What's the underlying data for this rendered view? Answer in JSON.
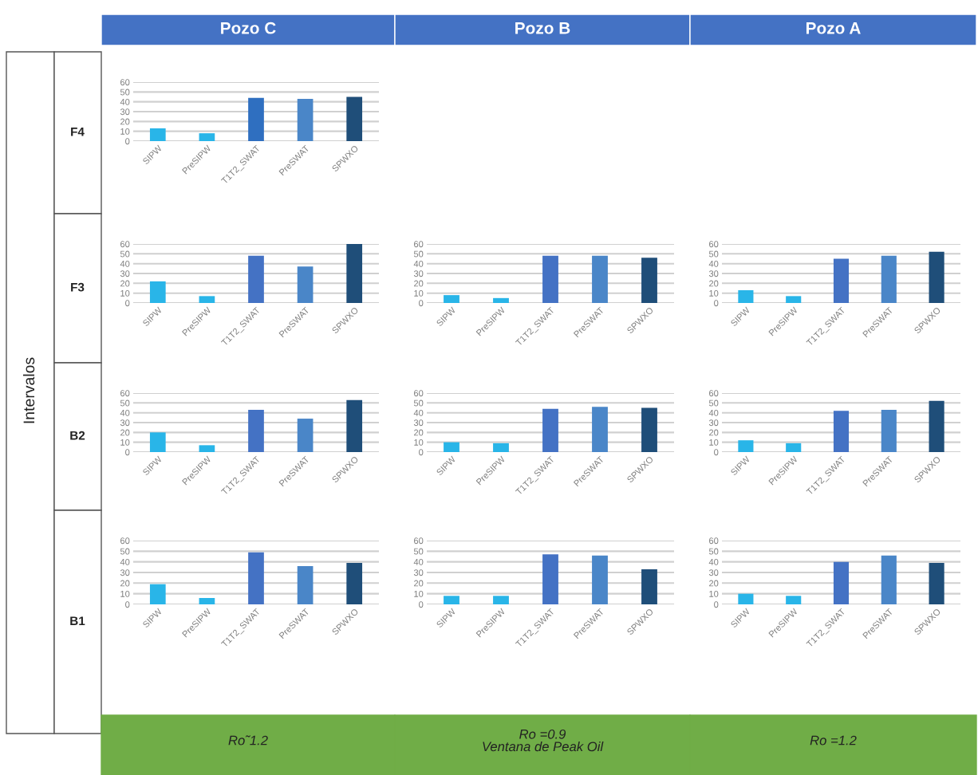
{
  "chart_data": [
    {
      "type": "bar",
      "title": "Pozo C",
      "ylabel": "F4",
      "annotations": [
        "Ro˜1.2",
        "Intervalos"
      ],
      "categories": [
        "SIPW",
        "PreSIPW",
        "T1T2_SWAT",
        "PreSWAT",
        "SPWXO"
      ],
      "values": [
        13,
        8,
        44,
        43,
        45
      ],
      "colors": [
        "#29b5e8",
        "#29b5e8",
        "#2f6fc0",
        "#4a86c8",
        "#1f4e79"
      ],
      "ylim": [
        0,
        60
      ],
      "yticks": [
        0,
        10,
        20,
        30,
        40,
        50,
        60
      ],
      "grid": "y"
    },
    {
      "type": "bar",
      "ylabel": "F3",
      "categories": [
        "SIPW",
        "PreSIPW",
        "T1T2_SWAT",
        "PreSWAT",
        "SPWXO"
      ],
      "values": [
        22,
        7,
        48,
        37,
        60
      ],
      "colors": [
        "#29b5e8",
        "#29b5e8",
        "#4472c4",
        "#4a86c8",
        "#1f4e79"
      ],
      "ylim": [
        0,
        60
      ],
      "yticks": [
        0,
        10,
        20,
        30,
        40,
        50,
        60
      ],
      "grid": "y"
    },
    {
      "type": "bar",
      "title": "Pozo B",
      "annotations": [
        "Ro =0.9\nVentana de Peak Oil"
      ],
      "categories": [
        "SIPW",
        "PreSIPW",
        "T1T2_SWAT",
        "PreSWAT",
        "SPWXO"
      ],
      "values": [
        8,
        5,
        48,
        48,
        46
      ],
      "colors": [
        "#29b5e8",
        "#29b5e8",
        "#4472c4",
        "#4a86c8",
        "#1f4e79"
      ],
      "ylim": [
        0,
        60
      ],
      "yticks": [
        0,
        10,
        20,
        30,
        40,
        50,
        60
      ],
      "grid": "y"
    },
    {
      "type": "bar",
      "title": "Pozo A",
      "annotations": [
        "Ro =1.2"
      ],
      "categories": [
        "SIPW",
        "PreSIPW",
        "T1T2_SWAT",
        "PreSWAT",
        "SPWXO"
      ],
      "values": [
        13,
        7,
        45,
        48,
        52
      ],
      "colors": [
        "#29b5e8",
        "#29b5e8",
        "#4472c4",
        "#4a86c8",
        "#1f4e79"
      ],
      "ylim": [
        0,
        60
      ],
      "yticks": [
        0,
        10,
        20,
        30,
        40,
        50,
        60
      ],
      "grid": "y"
    },
    {
      "type": "bar",
      "ylabel": "B2",
      "categories": [
        "SIPW",
        "PreSIPW",
        "T1T2_SWAT",
        "PreSWAT",
        "SPWXO"
      ],
      "values": [
        20,
        7,
        43,
        34,
        53
      ],
      "colors": [
        "#29b5e8",
        "#29b5e8",
        "#4472c4",
        "#4a86c8",
        "#1f4e79"
      ],
      "ylim": [
        0,
        60
      ],
      "yticks": [
        0,
        10,
        20,
        30,
        40,
        50,
        60
      ],
      "grid": "y"
    },
    {
      "type": "bar",
      "categories": [
        "SIPW",
        "PreSIPW",
        "T1T2_SWAT",
        "PreSWAT",
        "SPWXO"
      ],
      "values": [
        10,
        9,
        44,
        46,
        45
      ],
      "colors": [
        "#29b5e8",
        "#29b5e8",
        "#4472c4",
        "#4a86c8",
        "#1f4e79"
      ],
      "ylim": [
        0,
        60
      ],
      "yticks": [
        0,
        10,
        20,
        30,
        40,
        50,
        60
      ],
      "grid": "y"
    },
    {
      "type": "bar",
      "categories": [
        "SIPW",
        "PreSIPW",
        "T1T2_SWAT",
        "PreSWAT",
        "SPWXO"
      ],
      "values": [
        12,
        9,
        42,
        43,
        52
      ],
      "colors": [
        "#29b5e8",
        "#29b5e8",
        "#4472c4",
        "#4a86c8",
        "#1f4e79"
      ],
      "ylim": [
        0,
        60
      ],
      "yticks": [
        0,
        10,
        20,
        30,
        40,
        50,
        60
      ],
      "grid": "y"
    },
    {
      "type": "bar",
      "ylabel": "B1",
      "categories": [
        "SIPW",
        "PreSIPW",
        "T1T2_SWAT",
        "PreSWAT",
        "SPWXO"
      ],
      "values": [
        19,
        6,
        49,
        36,
        39
      ],
      "colors": [
        "#29b5e8",
        "#29b5e8",
        "#4472c4",
        "#4a86c8",
        "#1f4e79"
      ],
      "ylim": [
        0,
        60
      ],
      "yticks": [
        0,
        10,
        20,
        30,
        40,
        50,
        60
      ],
      "grid": "y"
    },
    {
      "type": "bar",
      "categories": [
        "SIPW",
        "PreSIPW",
        "T1T2_SWAT",
        "PreSWAT",
        "SPWXO"
      ],
      "values": [
        8,
        8,
        47,
        46,
        33
      ],
      "colors": [
        "#29b5e8",
        "#29b5e8",
        "#4472c4",
        "#4a86c8",
        "#1f4e79"
      ],
      "ylim": [
        0,
        60
      ],
      "yticks": [
        0,
        10,
        20,
        30,
        40,
        50,
        60
      ],
      "grid": "y"
    },
    {
      "type": "bar",
      "categories": [
        "SIPW",
        "PreSIPW",
        "T1T2_SWAT",
        "PreSWAT",
        "SPWXO"
      ],
      "values": [
        10,
        8,
        40,
        46,
        39
      ],
      "colors": [
        "#29b5e8",
        "#29b5e8",
        "#4472c4",
        "#4a86c8",
        "#1f4e79"
      ],
      "ylim": [
        0,
        60
      ],
      "yticks": [
        0,
        10,
        20,
        30,
        40,
        50,
        60
      ],
      "grid": "y"
    }
  ]
}
